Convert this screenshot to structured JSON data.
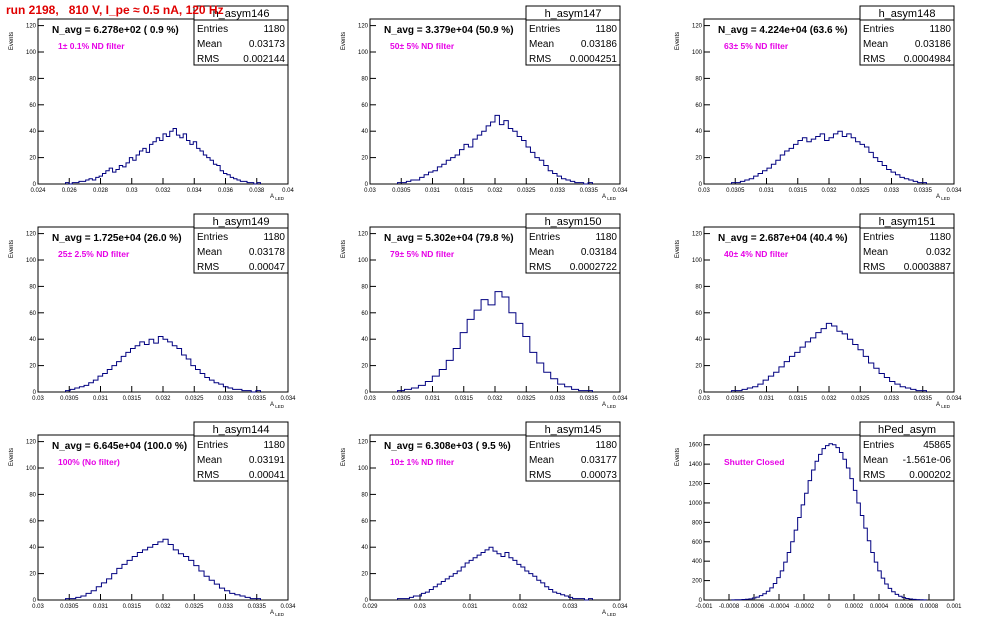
{
  "run_title": "run 2198,   810 V, I_pe ≈ 0.5 nA, 120 Hz",
  "colors": {
    "hist": "#000080",
    "filter_text": "#e600e6",
    "title_red": "#e00000"
  },
  "chart_data": [
    {
      "type": "histogram",
      "name": "h_asym146",
      "navg": "N_avg = 6.278e+02 ( 0.9 %)",
      "filter": "1± 0.1% ND filter",
      "stats": {
        "entries": "1180",
        "mean": "0.03173",
        "rms": "0.002144"
      },
      "ylabel": "Events",
      "xlabel": "A_LED",
      "xlim": [
        0.024,
        0.04
      ],
      "ylim": [
        0,
        125
      ],
      "xticks": [
        "0.024",
        "0.026",
        "0.028",
        "0.03",
        "0.032",
        "0.034",
        "0.036",
        "0.038",
        "0.04"
      ],
      "yticks": [
        "0",
        "20",
        "40",
        "60",
        "80",
        "100",
        "120"
      ],
      "counts": [
        1,
        0,
        1,
        1,
        2,
        2,
        3,
        4,
        3,
        5,
        6,
        8,
        10,
        12,
        9,
        11,
        14,
        13,
        16,
        20,
        18,
        22,
        25,
        27,
        24,
        30,
        32,
        35,
        33,
        38,
        36,
        40,
        42,
        37,
        35,
        38,
        33,
        30,
        32,
        27,
        25,
        22,
        20,
        18,
        15,
        14,
        10,
        8,
        7,
        5,
        4,
        3,
        2,
        2,
        1,
        1,
        0,
        1
      ]
    },
    {
      "type": "histogram",
      "name": "h_asym147",
      "navg": "N_avg = 3.379e+04 (50.9 %)",
      "filter": "50± 5% ND filter",
      "stats": {
        "entries": "1180",
        "mean": "0.03186",
        "rms": "0.0004251"
      },
      "ylabel": "Events",
      "xlabel": "A_LED",
      "xlim": [
        0.03,
        0.034
      ],
      "ylim": [
        0,
        125
      ],
      "xticks": [
        "0.03",
        "0.0305",
        "0.031",
        "0.0315",
        "0.032",
        "0.0325",
        "0.033",
        "0.0335",
        "0.034"
      ],
      "yticks": [
        "0",
        "20",
        "40",
        "60",
        "80",
        "100",
        "120"
      ],
      "counts": [
        1,
        1,
        2,
        3,
        3,
        5,
        7,
        9,
        10,
        13,
        15,
        18,
        20,
        22,
        26,
        30,
        28,
        34,
        37,
        40,
        44,
        47,
        52,
        45,
        48,
        42,
        40,
        36,
        33,
        28,
        24,
        20,
        18,
        14,
        10,
        8,
        6,
        4,
        3,
        2,
        1,
        1,
        0,
        1
      ]
    },
    {
      "type": "histogram",
      "name": "h_asym148",
      "navg": "N_avg = 4.224e+04 (63.6 %)",
      "filter": "63± 5% ND filter",
      "stats": {
        "entries": "1180",
        "mean": "0.03186",
        "rms": "0.0004984"
      },
      "ylabel": "Events",
      "xlabel": "A_LED",
      "xlim": [
        0.03,
        0.034
      ],
      "ylim": [
        0,
        125
      ],
      "xticks": [
        "0.03",
        "0.0305",
        "0.031",
        "0.0315",
        "0.032",
        "0.0325",
        "0.033",
        "0.0335",
        "0.034"
      ],
      "yticks": [
        "0",
        "20",
        "40",
        "60",
        "80",
        "100",
        "120"
      ],
      "counts": [
        1,
        1,
        2,
        3,
        4,
        6,
        8,
        10,
        12,
        15,
        18,
        22,
        25,
        27,
        30,
        33,
        35,
        32,
        34,
        36,
        38,
        33,
        35,
        38,
        40,
        36,
        38,
        35,
        32,
        30,
        28,
        24,
        20,
        17,
        14,
        11,
        9,
        7,
        5,
        4,
        3,
        2,
        1,
        1
      ]
    },
    {
      "type": "histogram",
      "name": "h_asym149",
      "navg": "N_avg = 1.725e+04 (26.0 %)",
      "filter": "25± 2.5% ND filter",
      "stats": {
        "entries": "1180",
        "mean": "0.03178",
        "rms": "0.00047"
      },
      "ylabel": "Events",
      "xlabel": "A_LED",
      "xlim": [
        0.03,
        0.034
      ],
      "ylim": [
        0,
        125
      ],
      "xticks": [
        "0.03",
        "0.0305",
        "0.031",
        "0.0315",
        "0.032",
        "0.0325",
        "0.033",
        "0.0335",
        "0.034"
      ],
      "yticks": [
        "0",
        "20",
        "40",
        "60",
        "80",
        "100",
        "120"
      ],
      "counts": [
        1,
        2,
        3,
        4,
        5,
        7,
        9,
        12,
        14,
        17,
        20,
        23,
        27,
        30,
        33,
        35,
        38,
        36,
        40,
        37,
        42,
        40,
        38,
        35,
        33,
        28,
        25,
        20,
        17,
        14,
        11,
        9,
        7,
        6,
        4,
        3,
        2,
        2,
        1,
        1,
        0,
        1
      ]
    },
    {
      "type": "histogram",
      "name": "h_asym150",
      "navg": "N_avg = 5.302e+04 (79.8 %)",
      "filter": "79± 5% ND filter",
      "stats": {
        "entries": "1180",
        "mean": "0.03184",
        "rms": "0.0002722"
      },
      "ylabel": "Events",
      "xlabel": "A_LED",
      "xlim": [
        0.03,
        0.034
      ],
      "ylim": [
        0,
        125
      ],
      "xticks": [
        "0.03",
        "0.0305",
        "0.031",
        "0.0315",
        "0.032",
        "0.0325",
        "0.033",
        "0.0335",
        "0.034"
      ],
      "yticks": [
        "0",
        "20",
        "40",
        "60",
        "80",
        "100",
        "120"
      ],
      "counts": [
        1,
        2,
        3,
        5,
        8,
        12,
        17,
        24,
        33,
        45,
        55,
        62,
        70,
        66,
        76,
        72,
        60,
        52,
        42,
        30,
        22,
        15,
        10,
        6,
        4,
        2,
        1,
        1
      ]
    },
    {
      "type": "histogram",
      "name": "h_asym151",
      "navg": "N_avg = 2.687e+04 (40.4 %)",
      "filter": "40± 4% ND filter",
      "stats": {
        "entries": "1180",
        "mean": "0.032",
        "rms": "0.0003887"
      },
      "ylabel": "Events",
      "xlabel": "A_LED",
      "xlim": [
        0.03,
        0.034
      ],
      "ylim": [
        0,
        125
      ],
      "xticks": [
        "0.03",
        "0.0305",
        "0.031",
        "0.0315",
        "0.032",
        "0.0325",
        "0.033",
        "0.0335",
        "0.034"
      ],
      "yticks": [
        "0",
        "20",
        "40",
        "60",
        "80",
        "100",
        "120"
      ],
      "counts": [
        1,
        1,
        2,
        3,
        4,
        6,
        9,
        12,
        15,
        19,
        23,
        27,
        30,
        34,
        38,
        41,
        45,
        48,
        52,
        50,
        46,
        44,
        40,
        36,
        32,
        27,
        22,
        18,
        14,
        11,
        8,
        6,
        4,
        3,
        2,
        1,
        1
      ]
    },
    {
      "type": "histogram",
      "name": "h_asym144",
      "navg": "N_avg = 6.645e+04 (100.0 %)",
      "filter": "100% (No filter)",
      "stats": {
        "entries": "1180",
        "mean": "0.03191",
        "rms": "0.00041"
      },
      "ylabel": "Events",
      "xlabel": "A_LED",
      "xlim": [
        0.03,
        0.034
      ],
      "ylim": [
        0,
        125
      ],
      "xticks": [
        "0.03",
        "0.0305",
        "0.031",
        "0.0315",
        "0.032",
        "0.0325",
        "0.033",
        "0.0335",
        "0.034"
      ],
      "yticks": [
        "0",
        "20",
        "40",
        "60",
        "80",
        "100",
        "120"
      ],
      "counts": [
        1,
        1,
        2,
        3,
        5,
        7,
        10,
        13,
        16,
        20,
        24,
        27,
        30,
        33,
        36,
        38,
        40,
        42,
        44,
        46,
        42,
        38,
        35,
        33,
        30,
        26,
        22,
        18,
        15,
        12,
        9,
        7,
        5,
        4,
        3,
        2,
        1,
        1
      ]
    },
    {
      "type": "histogram",
      "name": "h_asym145",
      "navg": "N_avg = 6.308e+03 ( 9.5 %)",
      "filter": "10± 1% ND filter",
      "stats": {
        "entries": "1180",
        "mean": "0.03177",
        "rms": "0.00073"
      },
      "ylabel": "Events",
      "xlabel": "A_LED",
      "xlim": [
        0.029,
        0.034
      ],
      "ylim": [
        0,
        125
      ],
      "xticks": [
        "0.029",
        "0.03",
        "0.031",
        "0.032",
        "0.033",
        "0.034"
      ],
      "yticks": [
        "0",
        "20",
        "40",
        "60",
        "80",
        "100",
        "120"
      ],
      "counts": [
        1,
        1,
        1,
        2,
        3,
        3,
        5,
        6,
        8,
        10,
        12,
        14,
        16,
        18,
        20,
        22,
        25,
        28,
        30,
        32,
        34,
        36,
        38,
        40,
        37,
        35,
        33,
        36,
        32,
        30,
        27,
        25,
        22,
        20,
        18,
        15,
        13,
        10,
        8,
        6,
        5,
        4,
        3,
        2,
        1,
        1,
        1,
        0,
        1
      ]
    },
    {
      "type": "histogram",
      "name": "hPed_asym",
      "navg": "",
      "filter": "Shutter Closed",
      "stats": {
        "entries": "45865",
        "mean": "-1.561e-06",
        "rms": "0.000202"
      },
      "ylabel": "Events",
      "xlabel": "",
      "xlim": [
        -0.001,
        0.001
      ],
      "ylim": [
        0,
        1700
      ],
      "xticks": [
        "-0.001",
        "-0.0008",
        "-0.0006",
        "-0.0004",
        "-0.0002",
        "0",
        "0.0002",
        "0.0004",
        "0.0006",
        "0.0008",
        "0.001"
      ],
      "yticks": [
        "0",
        "200",
        "400",
        "600",
        "800",
        "1000",
        "1200",
        "1400",
        "1600"
      ],
      "counts": [
        1,
        2,
        3,
        5,
        8,
        12,
        20,
        30,
        45,
        65,
        90,
        125,
        170,
        230,
        300,
        390,
        490,
        600,
        720,
        850,
        980,
        1100,
        1230,
        1340,
        1430,
        1500,
        1560,
        1590,
        1610,
        1600,
        1570,
        1520,
        1450,
        1360,
        1250,
        1130,
        1000,
        870,
        740,
        610,
        490,
        390,
        300,
        225,
        165,
        120,
        85,
        58,
        38,
        25,
        16,
        10,
        6,
        4,
        2,
        1
      ]
    }
  ]
}
